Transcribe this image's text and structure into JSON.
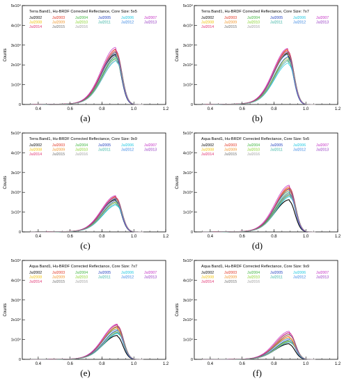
{
  "colors": {
    "Jul2002": "#000000",
    "Jul2003": "#e0301e",
    "Jul2004": "#3cb43c",
    "Jul2005": "#1f3fbf",
    "Jul2006": "#19c7e0",
    "Jul2007": "#c32cc3",
    "Jul2008": "#f0c000",
    "Jul2009": "#f09020",
    "Jul2010": "#80d020",
    "Jul2011": "#30b0a0",
    "Jul2012": "#3080e0",
    "Jul2013": "#9030c0",
    "Jul2014": "#e03070",
    "Jul2015": "#707070",
    "Jul2016": "#a0a0a0"
  },
  "panel_labels": [
    "(a)",
    "(b)",
    "(c)",
    "(d)",
    "(e)",
    "(f)"
  ],
  "chart_data": [
    {
      "panel": "(a)",
      "type": "line",
      "title": "Terra Band1, Hu-BRDF Corrected Reflectance, Core Size: 5x5",
      "xlabel": "Hu-BRDF Corrected Reflectance",
      "ylabel": "Counts",
      "xlim": [
        0.3,
        1.2
      ],
      "ylim": [
        0,
        50000
      ],
      "xticks": [
        "0.4",
        "0.6",
        "0.8",
        "1.0",
        "1.2"
      ],
      "yticks": [
        "0",
        "1x10⁴",
        "2x10⁴",
        "3x10⁴",
        "4x10⁴",
        "5x10⁴"
      ],
      "legend": [
        "Jul2002",
        "Jul2003",
        "Jul2004",
        "Jul2005",
        "Jul2006",
        "Jul2007",
        "Jul2008",
        "Jul2009",
        "Jul2010",
        "Jul2011",
        "Jul2012",
        "Jul2013",
        "Jul2014",
        "Jul2015",
        "Jul2016"
      ],
      "peak_x": 0.89,
      "peaks": [
        24000,
        26500,
        22000,
        23500,
        21000,
        27500,
        25000,
        26000,
        23000,
        22500,
        24500,
        25500,
        26800,
        25200,
        21500
      ]
    },
    {
      "panel": "(b)",
      "type": "line",
      "title": "Terra Band1, Hu-BRDF Corrected Reflectance, Core Size: 7x7",
      "xlabel": "Hu-BRDF Corrected Reflectance",
      "ylabel": "Counts",
      "xlim": [
        0.3,
        1.2
      ],
      "ylim": [
        0,
        50000
      ],
      "xticks": [
        "0.4",
        "0.6",
        "0.8",
        "1.0",
        "1.2"
      ],
      "yticks": [
        "0",
        "1x10⁴",
        "2x10⁴",
        "3x10⁴",
        "4x10⁴",
        "5x10⁴"
      ],
      "legend": [
        "Jul2002",
        "Jul2003",
        "Jul2004",
        "Jul2005",
        "Jul2006",
        "Jul2007",
        "Jul2008",
        "Jul2009",
        "Jul2010",
        "Jul2011",
        "Jul2012",
        "Jul2013",
        "Jul2014",
        "Jul2015",
        "Jul2016"
      ],
      "peak_x": 0.89,
      "peaks": [
        24500,
        26000,
        21500,
        23000,
        20000,
        27000,
        25000,
        26500,
        22500,
        21000,
        24000,
        25500,
        26800,
        25200,
        21800
      ]
    },
    {
      "panel": "(c)",
      "type": "line",
      "title": "Terra Band1, Hu-BRDF Corrected Reflectance, Core Size: 9x9",
      "xlabel": "Hu-BRDF Corrected Reflectance",
      "ylabel": "Counts",
      "xlim": [
        0.3,
        1.2
      ],
      "ylim": [
        0,
        50000
      ],
      "xticks": [
        "0.4",
        "0.6",
        "0.8",
        "1.0",
        "1.2"
      ],
      "yticks": [
        "0",
        "1x10⁴",
        "2x10⁴",
        "3x10⁴",
        "4x10⁴",
        "5x10⁴"
      ],
      "legend": [
        "Jul2002",
        "Jul2003",
        "Jul2004",
        "Jul2005",
        "Jul2006",
        "Jul2007",
        "Jul2008",
        "Jul2009",
        "Jul2010",
        "Jul2011",
        "Jul2012",
        "Jul2013",
        "Jul2014",
        "Jul2015",
        "Jul2016"
      ],
      "peak_x": 0.89,
      "peaks": [
        15500,
        17000,
        14000,
        15000,
        13000,
        17500,
        16000,
        16800,
        14500,
        13500,
        15800,
        16500,
        17200,
        16200,
        14200
      ]
    },
    {
      "panel": "(d)",
      "type": "line",
      "title": "Aqua Band1, Hu-BRDF Corrected Reflectance, Core Size: 5x5",
      "xlabel": "Hu-BRDF Corrected Reflectance",
      "ylabel": "Counts",
      "xlim": [
        0.3,
        1.2
      ],
      "ylim": [
        0,
        50000
      ],
      "xticks": [
        "0.4",
        "0.6",
        "0.8",
        "1.0",
        "1.2"
      ],
      "yticks": [
        "0",
        "1x10⁴",
        "2x10⁴",
        "3x10⁴",
        "4x10⁴",
        "5x10⁴"
      ],
      "legend": [
        "Jul2002",
        "Jul2003",
        "Jul2004",
        "Jul2005",
        "Jul2006",
        "Jul2007",
        "Jul2008",
        "Jul2009",
        "Jul2010",
        "Jul2011",
        "Jul2012",
        "Jul2013",
        "Jul2014",
        "Jul2015",
        "Jul2016"
      ],
      "peak_x": 0.9,
      "peaks": [
        15500,
        21000,
        19000,
        18500,
        17000,
        22500,
        20000,
        21500,
        18000,
        17500,
        19500,
        20500,
        22000,
        20800,
        17800
      ]
    },
    {
      "panel": "(e)",
      "type": "line",
      "title": "Aqua Band1, Hu-BRDF Corrected Reflectance, Core Size: 7x7",
      "xlabel": "Hu-BRDF Corrected Reflectance",
      "ylabel": "Counts",
      "xlim": [
        0.3,
        1.2
      ],
      "ylim": [
        0,
        50000
      ],
      "xticks": [
        "0.4",
        "0.6",
        "0.8",
        "1.0",
        "1.2"
      ],
      "yticks": [
        "0",
        "1x10⁴",
        "2x10⁴",
        "3x10⁴",
        "4x10⁴",
        "5x10⁴"
      ],
      "legend": [
        "Jul2002",
        "Jul2003",
        "Jul2004",
        "Jul2005",
        "Jul2006",
        "Jul2007",
        "Jul2008",
        "Jul2009",
        "Jul2010",
        "Jul2011",
        "Jul2012",
        "Jul2013",
        "Jul2014",
        "Jul2015",
        "Jul2016"
      ],
      "peak_x": 0.9,
      "peaks": [
        11500,
        15500,
        13500,
        14000,
        12500,
        17000,
        15000,
        16000,
        13000,
        12800,
        14500,
        16500,
        16800,
        15800,
        13200
      ]
    },
    {
      "panel": "(f)",
      "type": "line",
      "title": "Aqua Band1, Hu-BRDF Corrected Reflectance, Core Size: 9x9",
      "xlabel": "Hu-BRDF Corrected Reflectance",
      "ylabel": "Counts",
      "xlim": [
        0.3,
        1.2
      ],
      "ylim": [
        0,
        50000
      ],
      "xticks": [
        "0.4",
        "0.6",
        "0.8",
        "1.0",
        "1.2"
      ],
      "yticks": [
        "0",
        "1x10⁴",
        "2x10⁴",
        "3x10⁴",
        "4x10⁴",
        "5x10⁴"
      ],
      "legend": [
        "Jul2002",
        "Jul2003",
        "Jul2004",
        "Jul2005",
        "Jul2006",
        "Jul2007",
        "Jul2008",
        "Jul2009",
        "Jul2010",
        "Jul2011",
        "Jul2012",
        "Jul2013",
        "Jul2014",
        "Jul2015",
        "Jul2016"
      ],
      "peak_x": 0.9,
      "peaks": [
        7500,
        11000,
        9000,
        9500,
        8500,
        13500,
        10500,
        12000,
        8800,
        8200,
        10000,
        12500,
        13000,
        11800,
        8600
      ]
    }
  ]
}
